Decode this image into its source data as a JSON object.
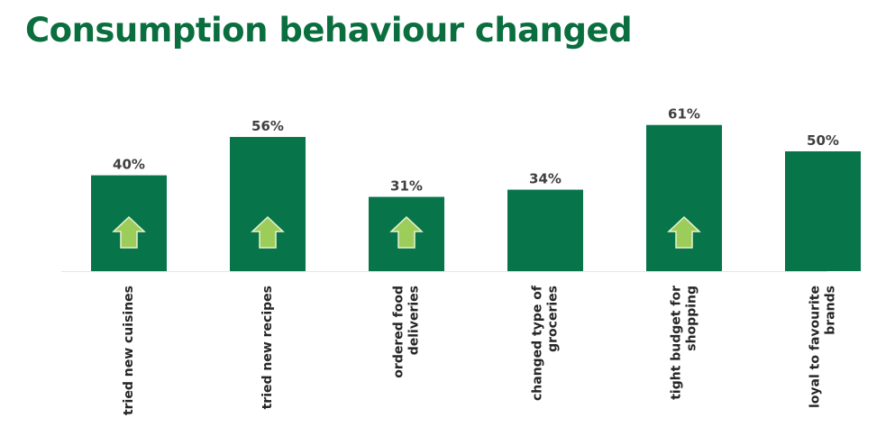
{
  "title": "Consumption behaviour changed",
  "colors": {
    "title": "#0a6e3f",
    "bar": "#08744a",
    "arrow": "#9ccc5a",
    "arrow_outline": "#e6f3d2",
    "axis": "#e6e6e6",
    "value_label": "#404040",
    "category_label": "#262626"
  },
  "chart_data": {
    "type": "bar",
    "title": "Consumption behaviour changed",
    "categories": [
      [
        "tried new cuisines"
      ],
      [
        "tried new recipes"
      ],
      [
        "ordered food",
        "deliveries"
      ],
      [
        "changed type of",
        "groceries"
      ],
      [
        "tight budget for",
        "shopping"
      ],
      [
        "loyal to favourite",
        "brands"
      ]
    ],
    "values": [
      40,
      56,
      31,
      34,
      61,
      50
    ],
    "value_labels": [
      "40%",
      "56%",
      "31%",
      "34%",
      "61%",
      "50%"
    ],
    "increase_arrow": [
      true,
      true,
      true,
      false,
      true,
      false
    ],
    "arrow_icon": "up-arrow-icon",
    "ylim": [
      0,
      100
    ],
    "unit": "%",
    "grid": false,
    "legend": "none",
    "category_label_orientation": "vertical"
  }
}
